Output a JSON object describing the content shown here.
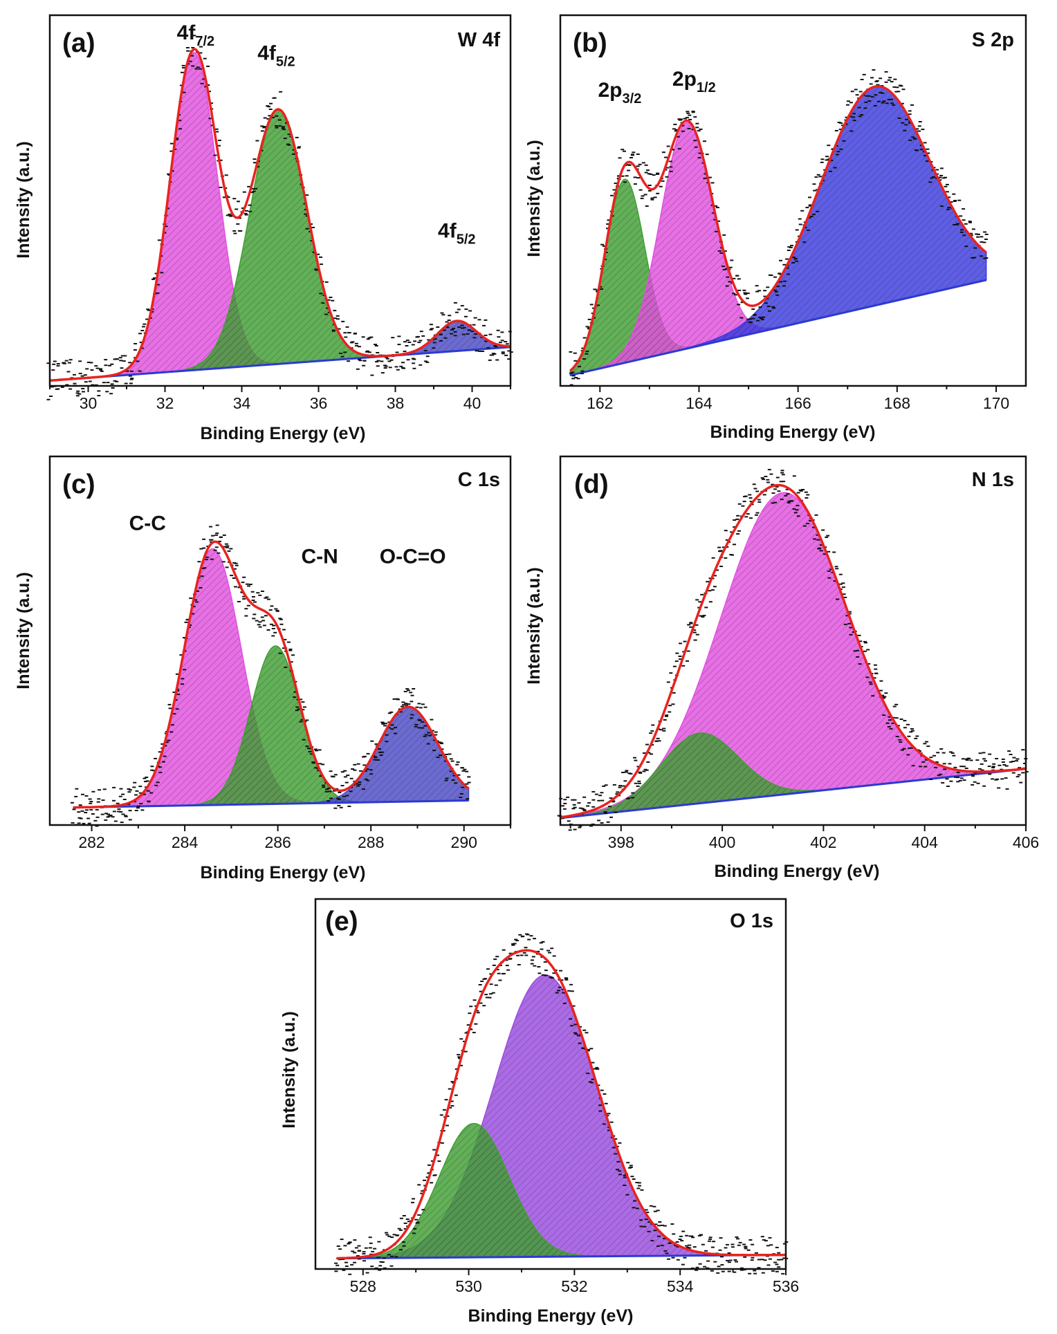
{
  "chart_data": [
    {
      "type": "line",
      "panel_label": "(a)",
      "title": "W 4f",
      "xlabel": "Binding Energy (eV)",
      "ylabel": "Intensity (a.u.)",
      "xlim": [
        29,
        41
      ],
      "ylim": [
        0,
        1.05
      ],
      "xticks": [
        30,
        32,
        34,
        36,
        38,
        40
      ],
      "grid": false,
      "baseline": [
        [
          29,
          0.015
        ],
        [
          41,
          0.11
        ]
      ],
      "peak_labels": [
        {
          "main": "4f",
          "sub": "7/2",
          "x": 32.8
        },
        {
          "main": "4f",
          "sub": "5/2",
          "x": 34.9
        },
        {
          "main": "4f",
          "sub": "5/2",
          "x": 39.6
        }
      ],
      "components": [
        {
          "center": 32.75,
          "height": 0.9,
          "fwhm": 1.45,
          "color": "#e34fe0"
        },
        {
          "center": 34.95,
          "height": 0.72,
          "fwhm": 1.75,
          "color": "#3f9f32"
        },
        {
          "center": 39.6,
          "height": 0.085,
          "fwhm": 1.2,
          "color": "#4a4ac8"
        }
      ]
    },
    {
      "type": "line",
      "panel_label": "(b)",
      "title": "S 2p",
      "xlabel": "Binding Energy (eV)",
      "ylabel": "Intensity (a.u.)",
      "xlim": [
        161.2,
        170.6
      ],
      "ylim": [
        0,
        1.05
      ],
      "xticks": [
        162,
        164,
        166,
        168,
        170
      ],
      "grid": false,
      "baseline": [
        [
          161.4,
          0.03
        ],
        [
          169.8,
          0.3
        ]
      ],
      "peak_labels": [
        {
          "main": "2p",
          "sub": "3/2",
          "x": 162.4
        },
        {
          "main": "2p",
          "sub": "1/2",
          "x": 163.9
        }
      ],
      "components": [
        {
          "center": 162.5,
          "height": 0.52,
          "fwhm": 0.95,
          "color": "#3f9f32"
        },
        {
          "center": 163.75,
          "height": 0.64,
          "fwhm": 1.25,
          "color": "#e34fe0"
        },
        {
          "center": 167.55,
          "height": 0.62,
          "fwhm": 2.6,
          "color": "#3a3ae0"
        }
      ]
    },
    {
      "type": "line",
      "panel_label": "(c)",
      "title": "C 1s",
      "xlabel": "Binding Energy (eV)",
      "ylabel": "Intensity (a.u.)",
      "xlim": [
        281.1,
        291
      ],
      "ylim": [
        0,
        1.05
      ],
      "xticks": [
        282,
        284,
        286,
        288,
        290
      ],
      "grid": false,
      "baseline": [
        [
          281.6,
          0.05
        ],
        [
          290.1,
          0.07
        ]
      ],
      "peak_labels": [
        {
          "main": "C-C",
          "sub": "",
          "x": 283.2
        },
        {
          "main": "C-N",
          "sub": "",
          "x": 286.9
        },
        {
          "main": "O-C=O",
          "sub": "",
          "x": 288.9
        }
      ],
      "components": [
        {
          "center": 284.6,
          "height": 0.73,
          "fwhm": 1.45,
          "color": "#e34fe0"
        },
        {
          "center": 285.95,
          "height": 0.45,
          "fwhm": 1.25,
          "color": "#3f9f32"
        },
        {
          "center": 288.8,
          "height": 0.27,
          "fwhm": 1.5,
          "color": "#4a4ac8"
        }
      ]
    },
    {
      "type": "line",
      "panel_label": "(d)",
      "title": "N 1s",
      "xlabel": "Binding Energy (eV)",
      "ylabel": "Intensity (a.u.)",
      "xlim": [
        396.8,
        406
      ],
      "ylim": [
        0,
        1.05
      ],
      "xticks": [
        398,
        400,
        402,
        404,
        406
      ],
      "grid": false,
      "baseline": [
        [
          396.8,
          0.02
        ],
        [
          406,
          0.16
        ]
      ],
      "peak_labels": [],
      "components": [
        {
          "center": 401.2,
          "height": 0.86,
          "fwhm": 2.9,
          "color": "#e34fe0"
        },
        {
          "center": 399.55,
          "height": 0.2,
          "fwhm": 1.8,
          "color": "#3f9f32"
        }
      ]
    },
    {
      "type": "line",
      "panel_label": "(e)",
      "title": "O 1s",
      "xlabel": "Binding Energy (eV)",
      "ylabel": "Intensity (a.u.)",
      "xlim": [
        527.1,
        536
      ],
      "ylim": [
        0,
        1.05
      ],
      "xticks": [
        528,
        530,
        532,
        534,
        536
      ],
      "grid": false,
      "baseline": [
        [
          527.5,
          0.03
        ],
        [
          536,
          0.04
        ]
      ],
      "peak_labels": [],
      "components": [
        {
          "center": 531.45,
          "height": 0.8,
          "fwhm": 2.3,
          "color": "#9a4ae0"
        },
        {
          "center": 530.1,
          "height": 0.38,
          "fwhm": 1.55,
          "color": "#3f9f32"
        }
      ]
    }
  ],
  "colors": {
    "envelope": "#e8231f",
    "background_line": "#2c3ad0",
    "data_points": "#111111",
    "axis": "#111111"
  }
}
